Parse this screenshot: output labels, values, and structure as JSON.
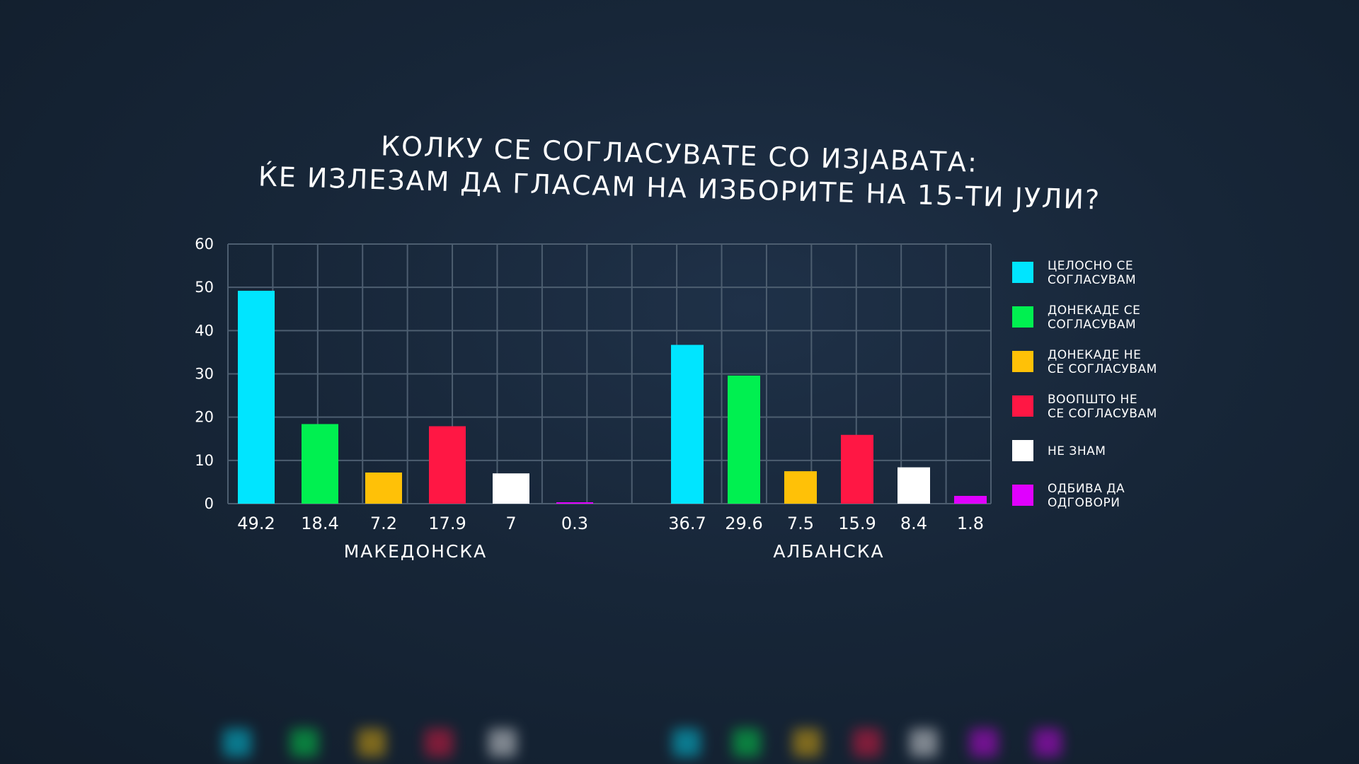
{
  "title_lines": [
    "КОЛКУ СЕ СОГЛАСУВАТЕ СО ИЗЈАВАТА:",
    "ЌЕ ИЗЛЕЗАМ ДА ГЛАСАМ НА ИЗБОРИТЕ НА 15-ТИ ЈУЛИ?"
  ],
  "chart_data": {
    "type": "bar",
    "title": "КОЛКУ СЕ СОГЛАСУВАТЕ СО ИЗЈАВАТА: ЌЕ ИЗЛЕЗАМ ДА ГЛАСАМ НА ИЗБОРИТЕ НА 15-ТИ ЈУЛИ?",
    "groups": [
      "МАКЕДОНСКА",
      "АЛБАНСКА"
    ],
    "series": [
      {
        "name": "ЦЕЛОСНО СЕ СОГЛАСУВАМ",
        "color": "#00e5ff",
        "values": [
          49.2,
          36.7
        ]
      },
      {
        "name": "ДОНЕКАДЕ СЕ СОГЛАСУВАМ",
        "color": "#00f050",
        "values": [
          18.4,
          29.6
        ]
      },
      {
        "name": "ДОНЕКАДЕ НЕ СЕ СОГЛАСУВАМ",
        "color": "#ffc107",
        "values": [
          7.2,
          7.5
        ]
      },
      {
        "name": "ВООПШТО НЕ СЕ СОГЛАСУВАМ",
        "color": "#ff1744",
        "values": [
          17.9,
          15.9
        ]
      },
      {
        "name": "НЕ ЗНАМ",
        "color": "#ffffff",
        "values": [
          7,
          8.4
        ]
      },
      {
        "name": "ОДБИВА ДА ОДГОВОРИ",
        "color": "#e000ff",
        "values": [
          0.3,
          1.8
        ]
      }
    ],
    "data_labels": [
      [
        "49.2",
        "18.4",
        "7.2",
        "17.9",
        "7",
        "0.3"
      ],
      [
        "36.7",
        "29.6",
        "7.5",
        "15.9",
        "8.4",
        "1.8"
      ]
    ],
    "yticks": [
      "0",
      "10",
      "20",
      "30",
      "40",
      "50",
      "60"
    ],
    "ylim": [
      0,
      60
    ],
    "grid": true,
    "legend_position": "right"
  },
  "legend": [
    {
      "lines": [
        "ЦЕЛОСНО СЕ",
        "СОГЛАСУВАМ"
      ],
      "color": "#00e5ff"
    },
    {
      "lines": [
        "ДОНЕКАДЕ СЕ",
        "СОГЛАСУВАМ"
      ],
      "color": "#00f050"
    },
    {
      "lines": [
        "ДОНЕКАДЕ НЕ",
        "СЕ СОГЛАСУВАМ"
      ],
      "color": "#ffc107"
    },
    {
      "lines": [
        "ВООПШТО НЕ",
        "СЕ СОГЛАСУВАМ"
      ],
      "color": "#ff1744"
    },
    {
      "lines": [
        "НЕ ЗНАМ"
      ],
      "color": "#ffffff"
    },
    {
      "lines": [
        "ОДБИВА ДА",
        "ОДГОВОРИ"
      ],
      "color": "#e000ff"
    }
  ]
}
